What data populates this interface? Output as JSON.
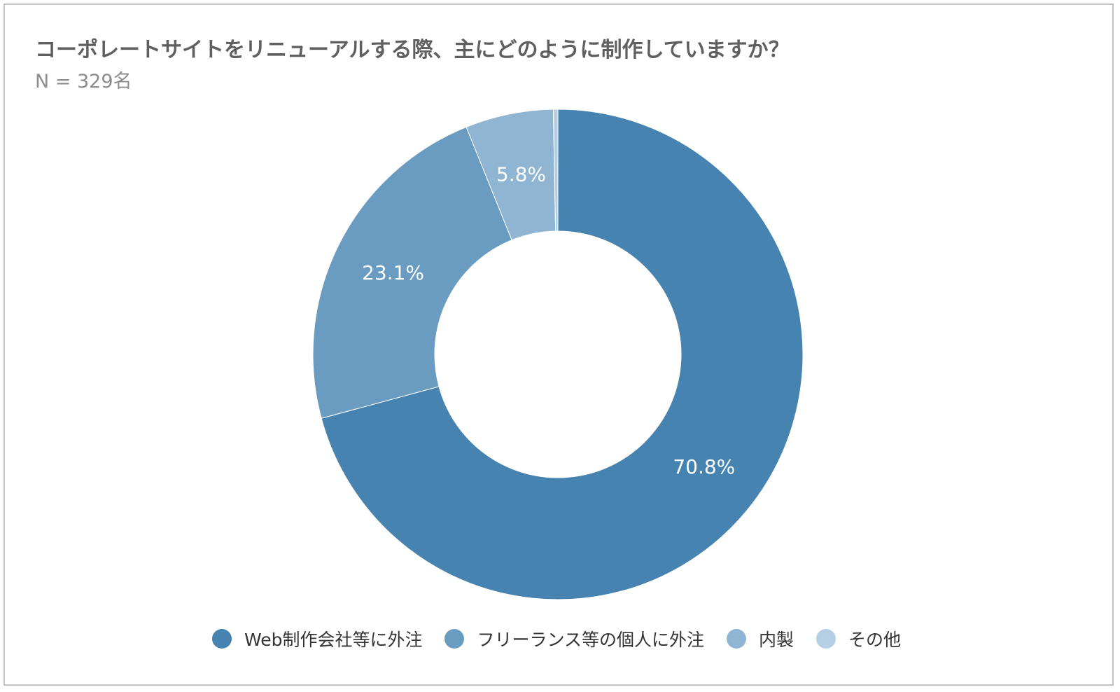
{
  "chart_data": {
    "type": "pie",
    "title": "コーポレートサイトをリニューアルする際、主にどのように制作していますか？",
    "subtitle": "N = 329名",
    "slices": [
      {
        "label": "Web制作会社等に外注",
        "value": 70.8,
        "display": "70.8%",
        "color": "#4783b0"
      },
      {
        "label": "フリーランス等の個人に外注",
        "value": 23.1,
        "display": "23.1%",
        "color": "#699cc0"
      },
      {
        "label": "内製",
        "value": 5.8,
        "display": "5.8%",
        "color": "#8fb5d2"
      },
      {
        "label": "その他",
        "value": 0.3,
        "display": "",
        "color": "#b4cfe3"
      }
    ],
    "legend_position": "bottom"
  }
}
